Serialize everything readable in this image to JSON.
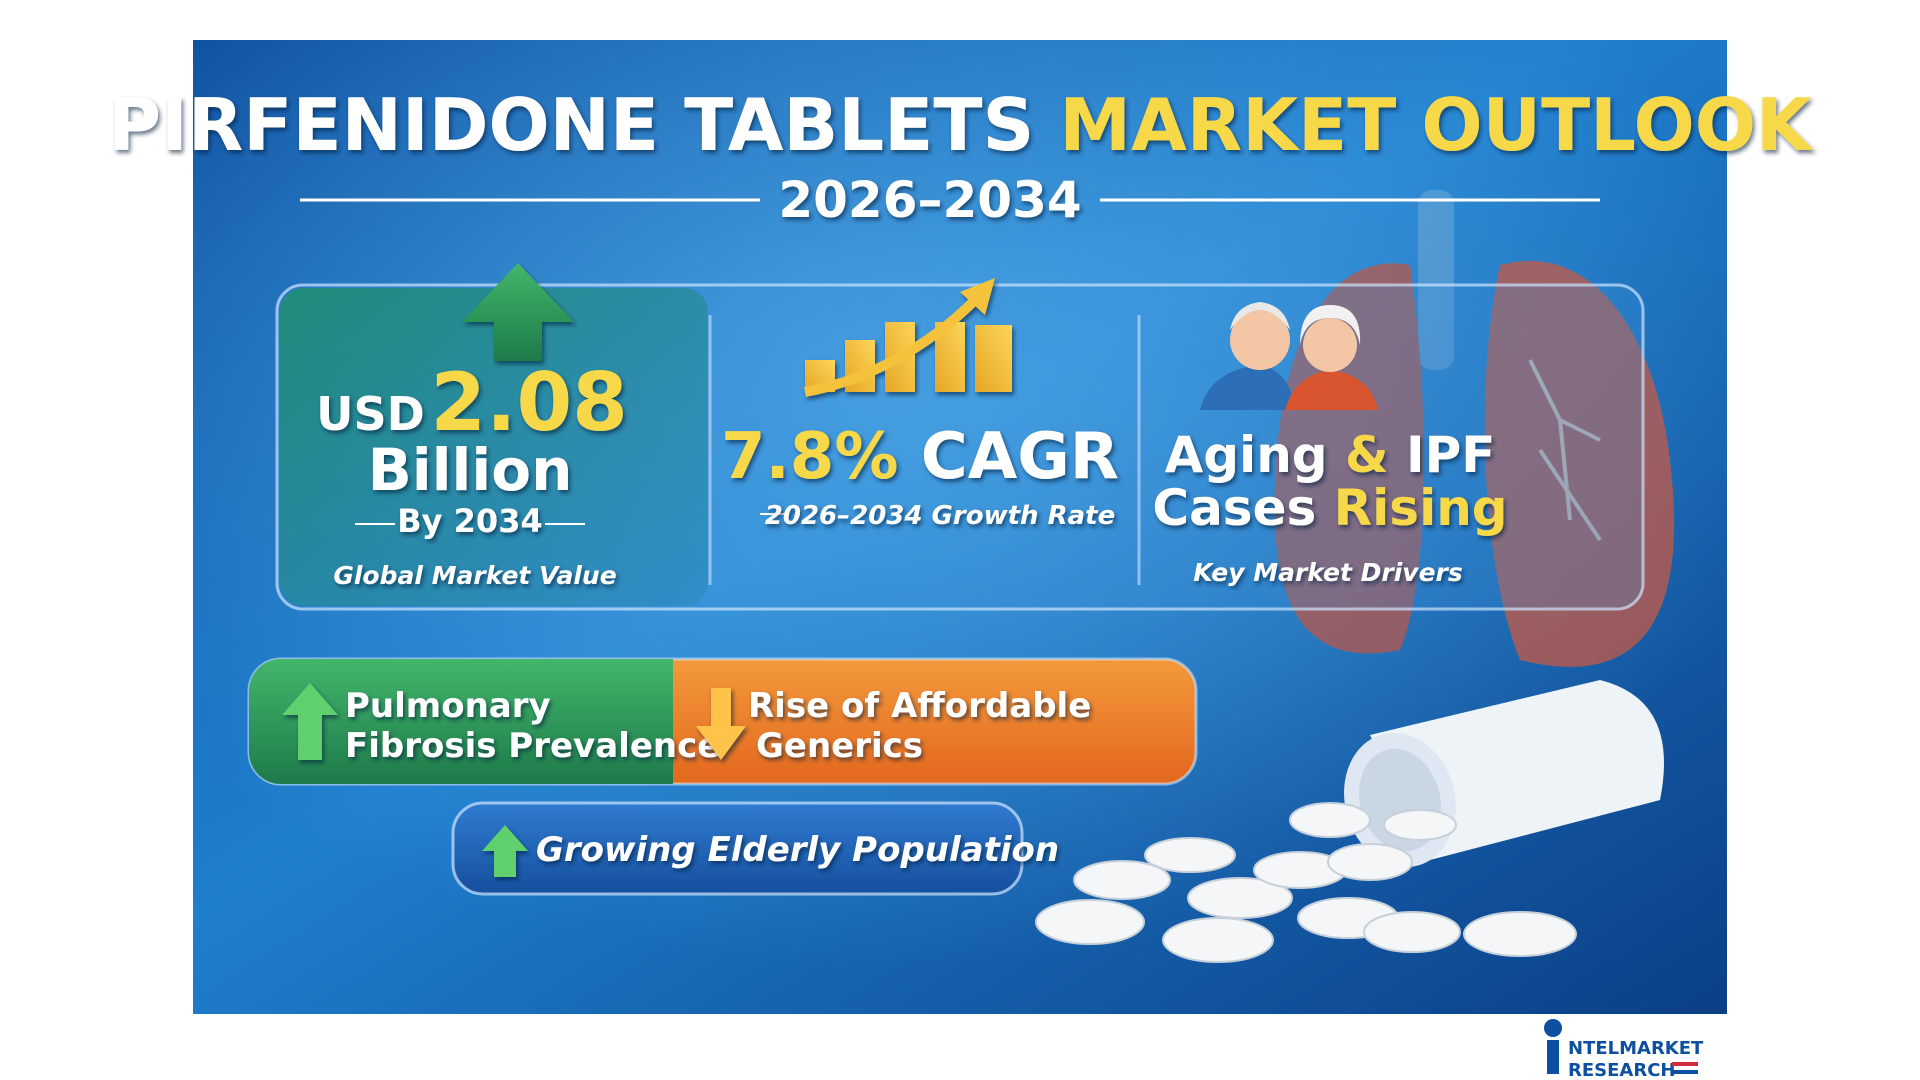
{
  "header": {
    "title_main": "PIRFENIDONE TABLETS",
    "title_accent": "MARKET OUTLOOK",
    "period": "2026–2034"
  },
  "market_value": {
    "currency": "USD",
    "amount": "2.08",
    "unit": "Billion",
    "year": "By 2034",
    "caption": "Global Market Value"
  },
  "growth": {
    "rate": "7.8%",
    "label": "CAGR",
    "period": "2026–2034 Growth Rate"
  },
  "drivers": {
    "line1_a": "Aging",
    "line1_amp": "&",
    "line1_b": "IPF",
    "line2_a": "Cases",
    "line2_b": "Rising",
    "caption": "Key Market Drivers"
  },
  "factors": [
    {
      "line1": "Pulmonary",
      "line2": "Fibrosis Prevalence"
    },
    {
      "line1": "Rise of Affordable",
      "line2": "Generics"
    },
    {
      "line1": "Growing Elderly Population"
    }
  ],
  "logo": {
    "line1": "NTELMARKET",
    "line2": "RESEARCH"
  }
}
